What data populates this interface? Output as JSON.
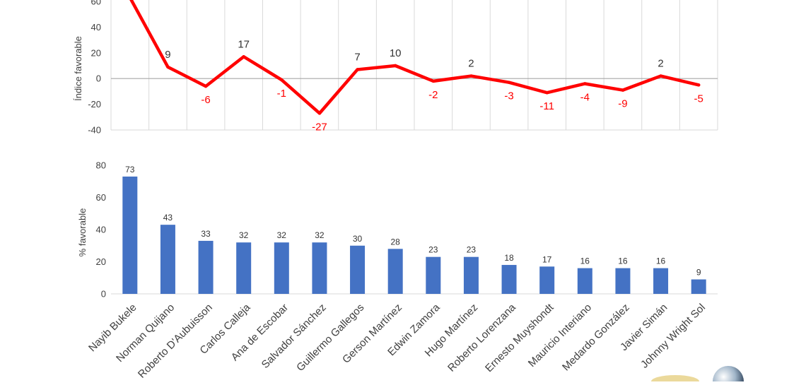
{
  "chart_data": [
    {
      "type": "line",
      "ylabel": "Índice favorable",
      "ylim": [
        -40,
        60
      ],
      "yticks": [
        -40,
        -20,
        0,
        20,
        40,
        60
      ],
      "grid": true,
      "line_color": "#ff0000",
      "negative_label_color": "#ff0000",
      "categories": [
        "Nayib Bukele",
        "Norman Quijano",
        "Roberto D'Aubuisson",
        "Carlos Calleja",
        "Ana de Escobar",
        "Salvador Sánchez",
        "Guillermo Gallegos",
        "Gerson Martínez",
        "Edwin Zamora",
        "Hugo Martínez",
        "Roberto Lorenzana",
        "Ernesto Muyshondt",
        "Mauricio Interiano",
        "Medardo González",
        "Javier Simán",
        "Johnny Wright Sol"
      ],
      "values": [
        63,
        9,
        -6,
        17,
        -1,
        -27,
        7,
        10,
        -2,
        2,
        -3,
        -11,
        -4,
        -9,
        2,
        -5
      ],
      "data_labels": [
        "",
        "9",
        "-6",
        "17",
        "-1",
        "-27",
        "7",
        "10",
        "-2",
        "2",
        "-3",
        "-11",
        "-4",
        "-9",
        "2",
        "-5"
      ]
    },
    {
      "type": "bar",
      "ylabel": "% favorable",
      "ylim": [
        0,
        80
      ],
      "yticks": [
        0,
        20,
        40,
        60,
        80
      ],
      "grid": false,
      "bar_color": "#4472c4",
      "categories": [
        "Nayib Bukele",
        "Norman Quijano",
        "Roberto D'Aubuisson",
        "Carlos Calleja",
        "Ana de Escobar",
        "Salvador Sánchez",
        "Guillermo Gallegos",
        "Gerson Martínez",
        "Edwin Zamora",
        "Hugo Martínez",
        "Roberto Lorenzana",
        "Ernesto Muyshondt",
        "Mauricio Interiano",
        "Medardo González",
        "Javier Simán",
        "Johnny Wright Sol"
      ],
      "values": [
        73,
        43,
        33,
        32,
        32,
        32,
        30,
        28,
        23,
        23,
        18,
        17,
        16,
        16,
        16,
        9
      ]
    }
  ]
}
